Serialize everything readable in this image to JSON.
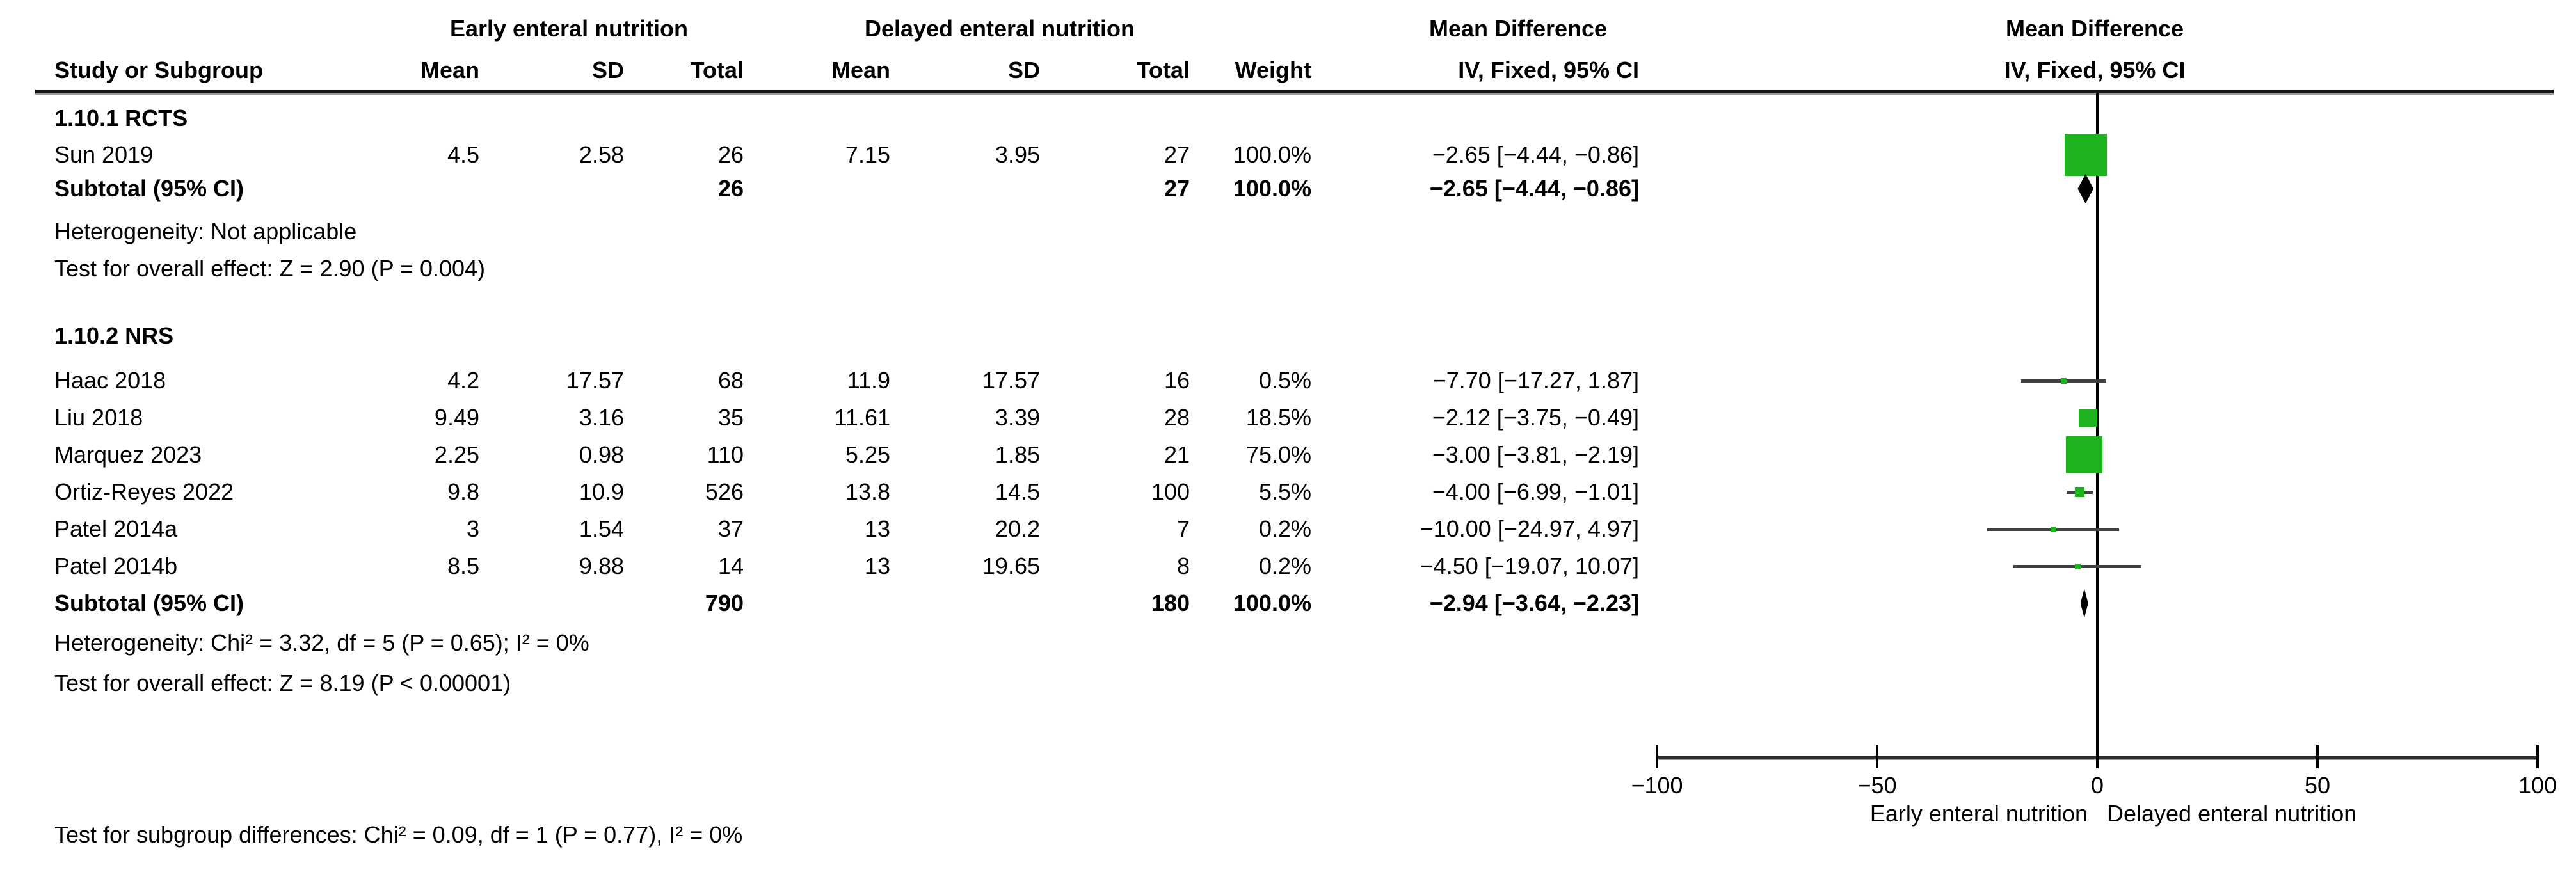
{
  "headers": {
    "study": "Study or Subgroup",
    "group1": "Early enteral nutrition",
    "group2": "Delayed enteral nutrition",
    "mean": "Mean",
    "sd": "SD",
    "total": "Total",
    "weight": "Weight",
    "md": "Mean Difference",
    "method": "IV, Fixed, 95% CI"
  },
  "colors": {
    "square_green": "#1FB41F",
    "diamond_black": "#000000",
    "ci_line": "#3F3F3F",
    "axis": "#2E2E2E",
    "text": "#000000"
  },
  "chart_data": {
    "type": "scatter",
    "subtype": "forest-plot",
    "effect_label": "Mean Difference",
    "method_label": "IV, Fixed, 95% CI",
    "xlim": [
      -100,
      100
    ],
    "x_ticks": [
      -100,
      -50,
      0,
      50,
      100
    ],
    "x_tick_labels": [
      "−100",
      "−50",
      "0",
      "50",
      "100"
    ],
    "axis_caption_left": "Early enteral nutrition",
    "axis_caption_right": "Delayed enteral nutrition",
    "footer": "Test for subgroup differences: Chi² = 0.09, df = 1 (P = 0.77), I² = 0%",
    "subgroups": [
      {
        "label": "1.10.1 RCTS",
        "studies": [
          {
            "name": "Sun 2019",
            "mean1": "4.5",
            "sd1": "2.58",
            "n1": "26",
            "mean2": "7.15",
            "sd2": "3.95",
            "n2": "27",
            "weight": "100.0%",
            "ci": "−2.65 [−4.44, −0.86]",
            "est": -2.65,
            "lo": -4.44,
            "hi": -0.86,
            "w": 100.0
          }
        ],
        "subtotal": {
          "label": "Subtotal (95% CI)",
          "n1": "26",
          "n2": "27",
          "weight": "100.0%",
          "ci": "−2.65 [−4.44, −0.86]",
          "est": -2.65,
          "lo": -4.44,
          "hi": -0.86
        },
        "heterogeneity": "Heterogeneity: Not applicable",
        "overall_effect": "Test for overall effect: Z = 2.90 (P = 0.004)"
      },
      {
        "label": "1.10.2 NRS",
        "studies": [
          {
            "name": "Haac 2018",
            "mean1": "4.2",
            "sd1": "17.57",
            "n1": "68",
            "mean2": "11.9",
            "sd2": "17.57",
            "n2": "16",
            "weight": "0.5%",
            "ci": "−7.70 [−17.27, 1.87]",
            "est": -7.7,
            "lo": -17.27,
            "hi": 1.87,
            "w": 0.5
          },
          {
            "name": "Liu 2018",
            "mean1": "9.49",
            "sd1": "3.16",
            "n1": "35",
            "mean2": "11.61",
            "sd2": "3.39",
            "n2": "28",
            "weight": "18.5%",
            "ci": "−2.12 [−3.75, −0.49]",
            "est": -2.12,
            "lo": -3.75,
            "hi": -0.49,
            "w": 18.5
          },
          {
            "name": "Marquez 2023",
            "mean1": "2.25",
            "sd1": "0.98",
            "n1": "110",
            "mean2": "5.25",
            "sd2": "1.85",
            "n2": "21",
            "weight": "75.0%",
            "ci": "−3.00 [−3.81, −2.19]",
            "est": -3.0,
            "lo": -3.81,
            "hi": -2.19,
            "w": 75.0
          },
          {
            "name": "Ortiz-Reyes 2022",
            "mean1": "9.8",
            "sd1": "10.9",
            "n1": "526",
            "mean2": "13.8",
            "sd2": "14.5",
            "n2": "100",
            "weight": "5.5%",
            "ci": "−4.00 [−6.99, −1.01]",
            "est": -4.0,
            "lo": -6.99,
            "hi": -1.01,
            "w": 5.5
          },
          {
            "name": "Patel 2014a",
            "mean1": "3",
            "sd1": "1.54",
            "n1": "37",
            "mean2": "13",
            "sd2": "20.2",
            "n2": "7",
            "weight": "0.2%",
            "ci": "−10.00 [−24.97, 4.97]",
            "est": -10.0,
            "lo": -24.97,
            "hi": 4.97,
            "w": 0.2
          },
          {
            "name": "Patel 2014b",
            "mean1": "8.5",
            "sd1": "9.88",
            "n1": "14",
            "mean2": "13",
            "sd2": "19.65",
            "n2": "8",
            "weight": "0.2%",
            "ci": "−4.50 [−19.07, 10.07]",
            "est": -4.5,
            "lo": -19.07,
            "hi": 10.07,
            "w": 0.2
          }
        ],
        "subtotal": {
          "label": "Subtotal (95% CI)",
          "n1": "790",
          "n2": "180",
          "weight": "100.0%",
          "ci": "−2.94 [−3.64, −2.23]",
          "est": -2.94,
          "lo": -3.64,
          "hi": -2.23
        },
        "heterogeneity": "Heterogeneity: Chi² = 3.32, df = 5 (P = 0.65); I² = 0%",
        "overall_effect": "Test for overall effect: Z = 8.19 (P < 0.00001)"
      }
    ]
  }
}
